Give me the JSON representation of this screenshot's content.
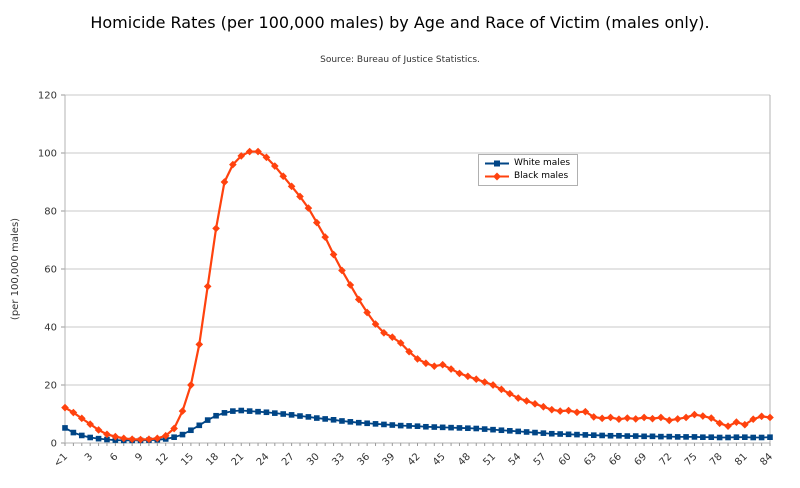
{
  "chart": {
    "title": "Homicide Rates (per 100,000 males) by Age and Race of Victim (males only).",
    "subtitle": "Source: Bureau of Justice Statistics.",
    "y_axis_title": "(per 100,000 males)"
  },
  "chart_data": {
    "type": "line",
    "title": "Homicide Rates (per 100,000 males) by Age and Race of Victim (males only).",
    "subtitle": "Source: Bureau of Justice Statistics.",
    "xlabel": "",
    "ylabel": "(per 100,000 males)",
    "x_description": "Age of victim, single years from <1 (age 0) to 84",
    "x_tick_labels": [
      "<1",
      "3",
      "6",
      "9",
      "12",
      "15",
      "18",
      "21",
      "24",
      "27",
      "30",
      "33",
      "36",
      "39",
      "42",
      "45",
      "48",
      "51",
      "54",
      "57",
      "60",
      "63",
      "66",
      "69",
      "72",
      "75",
      "78",
      "81",
      "84"
    ],
    "x_label_every": 3,
    "ylim": [
      0,
      120
    ],
    "y_ticks": [
      0,
      20,
      40,
      60,
      80,
      100,
      120
    ],
    "grid": true,
    "legend_position": "inside-top-center-right",
    "series": [
      {
        "name": "White males",
        "color": "#004586",
        "marker": "square",
        "values": [
          5.2,
          3.6,
          2.6,
          1.9,
          1.5,
          1.2,
          1.0,
          0.9,
          0.9,
          0.9,
          1.0,
          1.1,
          1.4,
          2.0,
          2.9,
          4.4,
          6.1,
          7.9,
          9.4,
          10.4,
          11.0,
          11.2,
          11.0,
          10.8,
          10.6,
          10.3,
          10.0,
          9.7,
          9.3,
          9.0,
          8.6,
          8.3,
          8.0,
          7.6,
          7.3,
          7.0,
          6.8,
          6.6,
          6.4,
          6.2,
          6.0,
          5.9,
          5.8,
          5.6,
          5.5,
          5.4,
          5.3,
          5.2,
          5.1,
          5.0,
          4.8,
          4.6,
          4.4,
          4.2,
          4.0,
          3.8,
          3.6,
          3.4,
          3.2,
          3.1,
          3.0,
          2.9,
          2.8,
          2.7,
          2.6,
          2.5,
          2.5,
          2.4,
          2.4,
          2.3,
          2.3,
          2.2,
          2.2,
          2.1,
          2.1,
          2.1,
          2.0,
          2.0,
          1.9,
          1.9,
          2.0,
          2.0,
          1.9,
          1.9,
          2.0
        ]
      },
      {
        "name": "Black males",
        "color": "#FF420E",
        "marker": "diamond",
        "values": [
          12.2,
          10.5,
          8.5,
          6.5,
          4.5,
          3.0,
          2.2,
          1.6,
          1.3,
          1.2,
          1.3,
          1.6,
          2.5,
          5.0,
          11.0,
          20.0,
          34.0,
          54.0,
          74.0,
          90.0,
          96.0,
          99.0,
          100.5,
          100.5,
          98.5,
          95.5,
          92.0,
          88.5,
          85.0,
          81.0,
          76.0,
          71.0,
          65.0,
          59.5,
          54.5,
          49.5,
          45.0,
          41.0,
          38.0,
          36.5,
          34.5,
          31.5,
          29.0,
          27.5,
          26.5,
          27.0,
          25.5,
          24.0,
          23.0,
          22.0,
          21.0,
          20.0,
          18.5,
          17.0,
          15.5,
          14.5,
          13.5,
          12.5,
          11.5,
          11.0,
          11.2,
          10.6,
          10.8,
          9.0,
          8.5,
          8.8,
          8.2,
          8.6,
          8.3,
          8.8,
          8.4,
          8.8,
          7.8,
          8.3,
          8.8,
          9.8,
          9.3,
          8.6,
          6.8,
          5.8,
          7.2,
          6.3,
          8.2,
          9.2,
          8.8
        ]
      }
    ]
  }
}
